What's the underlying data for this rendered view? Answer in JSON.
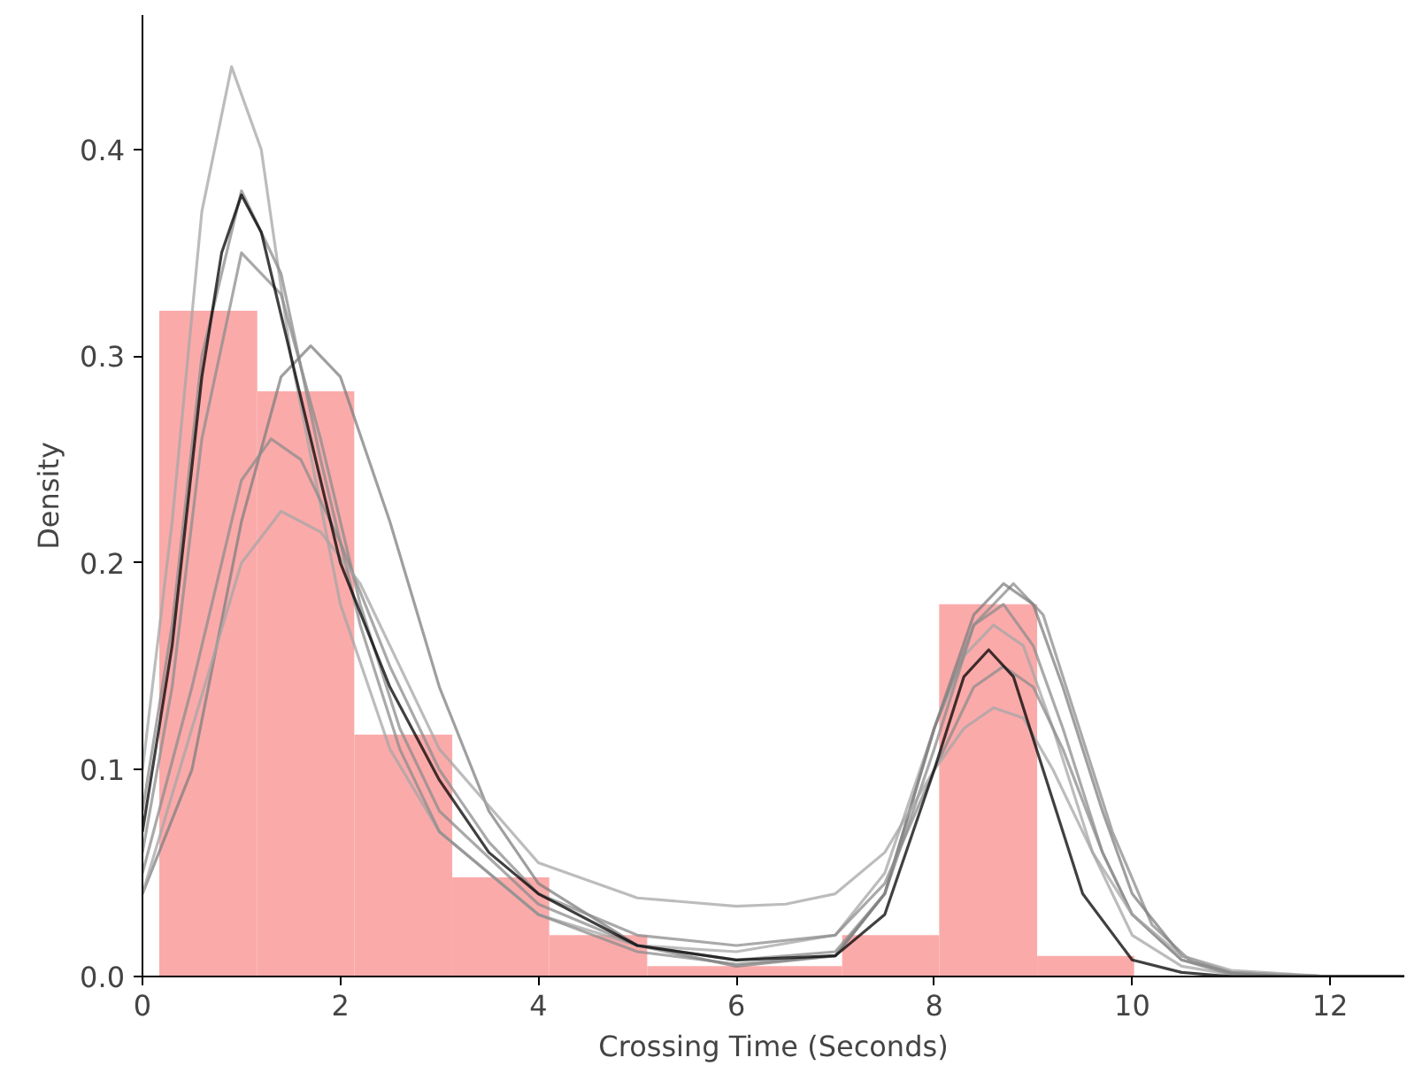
{
  "chart_data": {
    "type": "histogram",
    "xlabel": "Crossing Time (Seconds)",
    "ylabel": "Density",
    "bins": [
      0.17,
      1.16,
      2.14,
      3.13,
      4.11,
      5.1,
      6.08,
      7.07,
      8.05,
      9.04,
      10.02
    ],
    "values": [
      0.322,
      0.283,
      0.117,
      0.048,
      0.02,
      0.005,
      0.005,
      0.02,
      0.18,
      0.01
    ],
    "color": "#fbaaaa",
    "xlim": [
      0,
      12.75
    ],
    "ylim": [
      0,
      0.465
    ],
    "xticks": [
      0,
      2,
      4,
      6,
      8,
      10,
      12
    ],
    "yticks": [
      {
        "value": 0,
        "label": "0.0"
      },
      {
        "value": 0.1,
        "label": "0.1"
      },
      {
        "value": 0.2,
        "label": "0.2"
      },
      {
        "value": 0.3,
        "label": "0.3"
      },
      {
        "value": 0.4,
        "label": "0.4"
      }
    ],
    "grid": false,
    "series": [
      {
        "type": "line",
        "color": "#a6a6a6",
        "x": [
          0,
          0.3,
          0.6,
          0.9,
          1.2,
          1.5,
          2,
          2.5,
          3,
          4,
          5,
          6,
          7,
          7.5,
          8,
          8.3,
          8.6,
          8.9,
          9.2,
          9.6,
          10,
          10.5,
          11,
          12,
          12.75
        ],
        "values": [
          0.1,
          0.22,
          0.37,
          0.44,
          0.4,
          0.3,
          0.18,
          0.11,
          0.07,
          0.03,
          0.015,
          0.012,
          0.02,
          0.05,
          0.12,
          0.155,
          0.17,
          0.16,
          0.12,
          0.06,
          0.02,
          0.005,
          0.001,
          0,
          0
        ]
      },
      {
        "type": "line",
        "color": "#8c8c8c",
        "x": [
          0,
          0.3,
          0.6,
          1,
          1.4,
          1.8,
          2.2,
          2.6,
          3,
          4,
          5,
          6,
          7,
          7.5,
          8,
          8.4,
          8.7,
          9,
          9.3,
          9.7,
          10,
          10.5,
          11,
          12,
          12.75
        ],
        "values": [
          0.08,
          0.17,
          0.3,
          0.38,
          0.34,
          0.25,
          0.17,
          0.11,
          0.07,
          0.03,
          0.012,
          0.006,
          0.01,
          0.04,
          0.12,
          0.17,
          0.18,
          0.16,
          0.12,
          0.06,
          0.03,
          0.008,
          0.001,
          0,
          0
        ]
      },
      {
        "type": "line",
        "color": "#8c8c8c",
        "x": [
          0,
          0.3,
          0.6,
          1,
          1.4,
          1.8,
          2.2,
          2.6,
          3,
          4,
          5,
          6,
          7,
          7.5,
          8,
          8.4,
          8.8,
          9.1,
          9.4,
          9.8,
          10.2,
          10.6,
          11,
          12,
          12.75
        ],
        "values": [
          0.06,
          0.14,
          0.26,
          0.35,
          0.33,
          0.26,
          0.18,
          0.12,
          0.08,
          0.035,
          0.015,
          0.008,
          0.012,
          0.04,
          0.11,
          0.17,
          0.19,
          0.175,
          0.13,
          0.07,
          0.025,
          0.007,
          0.002,
          0,
          0
        ]
      },
      {
        "type": "line",
        "color": "#7f7f7f",
        "x": [
          0,
          0.5,
          1,
          1.4,
          1.7,
          2,
          2.5,
          3,
          3.5,
          4,
          5,
          6,
          7,
          7.5,
          8,
          8.4,
          8.7,
          9,
          9.3,
          9.7,
          10,
          10.5,
          11,
          12,
          12.75
        ],
        "values": [
          0.04,
          0.1,
          0.22,
          0.29,
          0.305,
          0.29,
          0.22,
          0.14,
          0.08,
          0.045,
          0.015,
          0.005,
          0.01,
          0.04,
          0.12,
          0.175,
          0.19,
          0.18,
          0.14,
          0.08,
          0.04,
          0.01,
          0.002,
          0,
          0
        ]
      },
      {
        "type": "line",
        "color": "#8c8c8c",
        "x": [
          0,
          0.5,
          1,
          1.3,
          1.6,
          2,
          2.5,
          3,
          3.5,
          4,
          5,
          6,
          7,
          7.5,
          8,
          8.4,
          8.7,
          9,
          9.3,
          9.7,
          10,
          10.5,
          11,
          12,
          12.75
        ],
        "values": [
          0.05,
          0.14,
          0.24,
          0.26,
          0.25,
          0.21,
          0.15,
          0.1,
          0.065,
          0.04,
          0.02,
          0.015,
          0.02,
          0.045,
          0.1,
          0.14,
          0.15,
          0.14,
          0.11,
          0.06,
          0.03,
          0.008,
          0.002,
          0,
          0
        ]
      },
      {
        "type": "line",
        "color": "#a6a6a6",
        "x": [
          0,
          0.5,
          1,
          1.4,
          1.8,
          2.2,
          2.6,
          3,
          4,
          5,
          6,
          6.5,
          7,
          7.5,
          8,
          8.3,
          8.6,
          8.9,
          9.2,
          9.6,
          10,
          10.5,
          11,
          12,
          12.75
        ],
        "values": [
          0.04,
          0.12,
          0.2,
          0.225,
          0.215,
          0.19,
          0.15,
          0.11,
          0.055,
          0.038,
          0.034,
          0.035,
          0.04,
          0.06,
          0.1,
          0.12,
          0.13,
          0.125,
          0.1,
          0.06,
          0.03,
          0.01,
          0.003,
          0,
          0
        ]
      },
      {
        "type": "line",
        "color": "#000000",
        "x": [
          0,
          0.3,
          0.6,
          0.8,
          1,
          1.2,
          1.5,
          2,
          2.5,
          3,
          3.5,
          4,
          5,
          6,
          7,
          7.5,
          8,
          8.3,
          8.55,
          8.8,
          9.1,
          9.5,
          10,
          10.5,
          11,
          12,
          12.75
        ],
        "values": [
          0.07,
          0.16,
          0.29,
          0.35,
          0.378,
          0.36,
          0.3,
          0.2,
          0.14,
          0.095,
          0.06,
          0.04,
          0.015,
          0.008,
          0.01,
          0.03,
          0.1,
          0.145,
          0.158,
          0.145,
          0.1,
          0.04,
          0.008,
          0.002,
          0,
          0,
          0
        ]
      }
    ]
  }
}
